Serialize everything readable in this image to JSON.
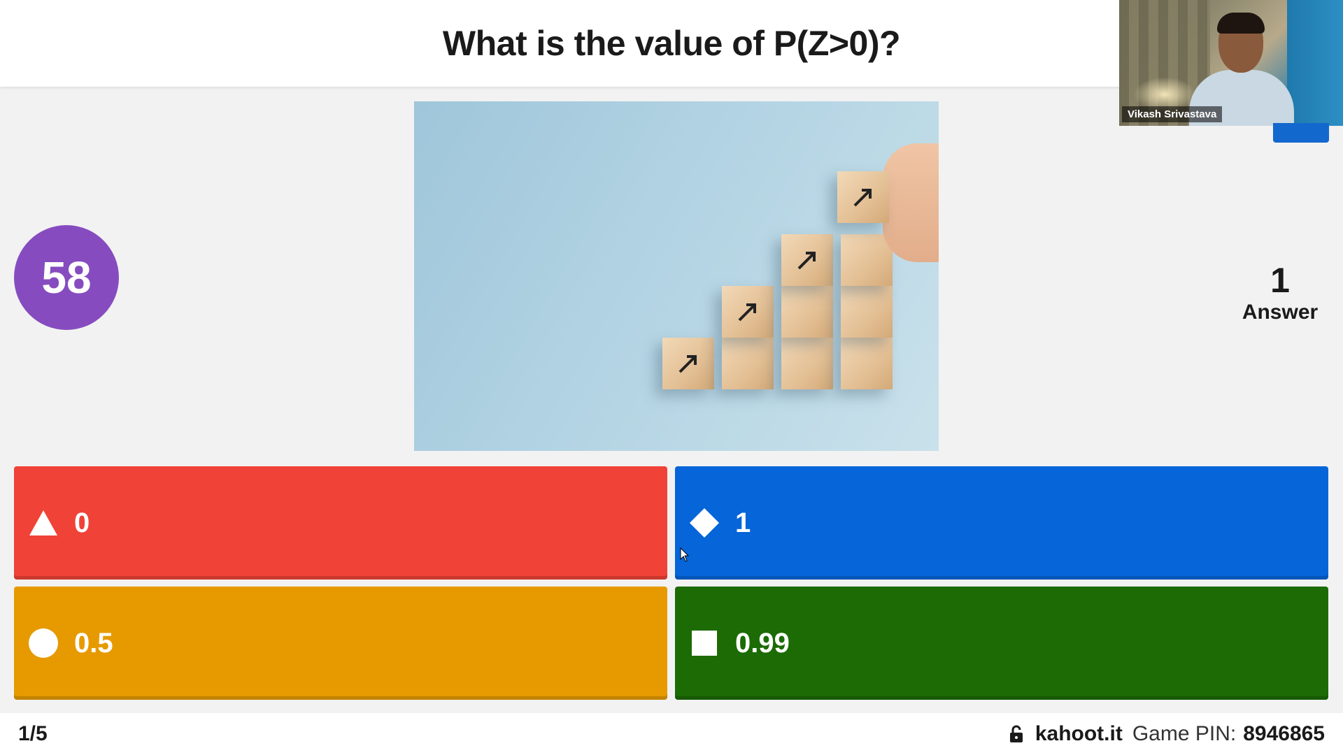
{
  "question": {
    "text": "What is the value of P(Z>0)?"
  },
  "timer": {
    "seconds": "58",
    "color": "#864cbf"
  },
  "answer_count": {
    "number": "1",
    "label": "Answer"
  },
  "webcam": {
    "participant_name": "Vikash Srivastava"
  },
  "answers": [
    {
      "shape": "triangle-icon",
      "text": "0",
      "color": "#f04237"
    },
    {
      "shape": "diamond-icon",
      "text": "1",
      "color": "#0565d9"
    },
    {
      "shape": "circle-icon",
      "text": "0.5",
      "color": "#e69a00"
    },
    {
      "shape": "square-icon",
      "text": "0.99",
      "color": "#1c6b05"
    }
  ],
  "footer": {
    "progress": "1/5",
    "site": "kahoot.it",
    "pin_label": "Game PIN:",
    "pin": "8946865"
  }
}
